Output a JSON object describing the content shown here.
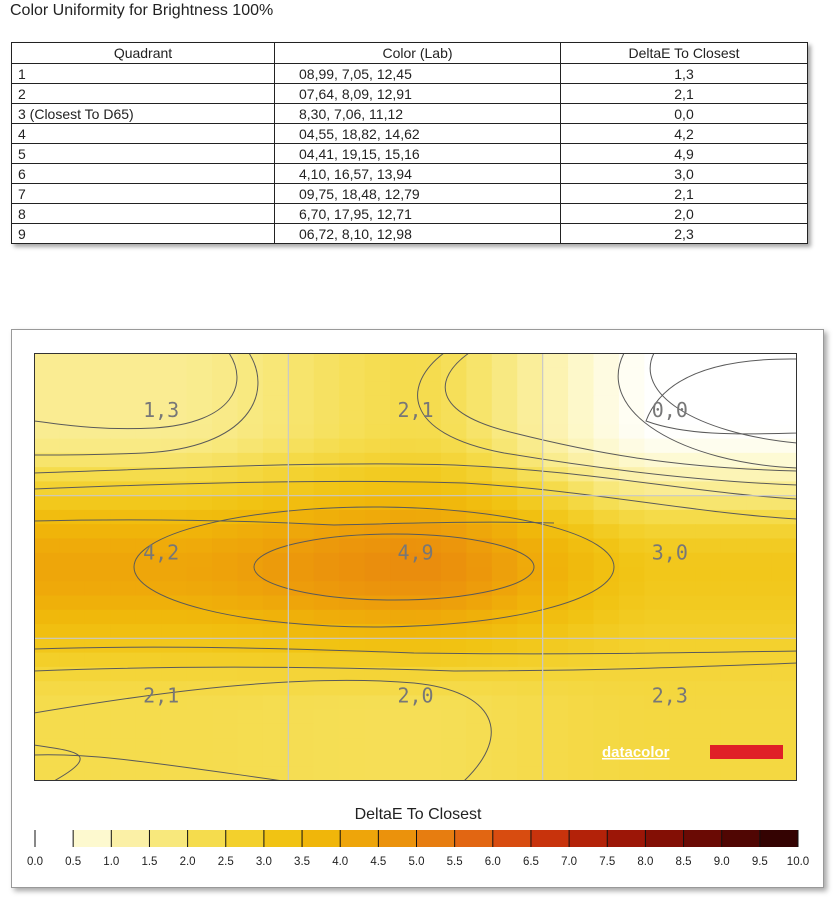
{
  "title": "Color Uniformity for Brightness 100%",
  "table": {
    "headers": [
      "Quadrant",
      "Color (Lab)",
      "DeltaE To Closest"
    ],
    "rows": [
      {
        "quadrant": "1",
        "lab": "08,99,  7,05,  12,45",
        "delta": "1,3"
      },
      {
        "quadrant": "2",
        "lab": "07,64,  8,09,  12,91",
        "delta": "2,1"
      },
      {
        "quadrant": "3 (Closest To D65)",
        "lab": "8,30,  7,06,  11,12",
        "delta": "0,0"
      },
      {
        "quadrant": "4",
        "lab": "04,55,  18,82,  14,62",
        "delta": "4,2"
      },
      {
        "quadrant": "5",
        "lab": "04,41,  19,15,  15,16",
        "delta": "4,9"
      },
      {
        "quadrant": "6",
        "lab": "4,10,  16,57,  13,94",
        "delta": "3,0"
      },
      {
        "quadrant": "7",
        "lab": "09,75,  18,48,  12,79",
        "delta": "2,1"
      },
      {
        "quadrant": "8",
        "lab": "6,70,  17,95,  12,71",
        "delta": "2,0"
      },
      {
        "quadrant": "9",
        "lab": "06,72,  8,10,  12,98",
        "delta": "2,3"
      }
    ]
  },
  "chart_data": {
    "type": "heatmap",
    "grid": [
      [
        "1,3",
        "2,1",
        "0,0"
      ],
      [
        "4,2",
        "4,9",
        "3,0"
      ],
      [
        "2,1",
        "2,0",
        "2,3"
      ]
    ],
    "values": [
      [
        1.3,
        2.1,
        0.0
      ],
      [
        4.2,
        4.9,
        3.0
      ],
      [
        2.1,
        2.0,
        2.3
      ]
    ],
    "colorbar_title": "DeltaE To Closest",
    "colorbar_ticks": [
      "0.0",
      "0.5",
      "1.0",
      "1.5",
      "2.0",
      "2.5",
      "3.0",
      "3.5",
      "4.0",
      "4.5",
      "5.0",
      "5.5",
      "6.0",
      "6.5",
      "7.0",
      "7.5",
      "8.0",
      "8.5",
      "9.0",
      "9.5",
      "10.0"
    ],
    "colorbar_range": [
      0,
      10
    ],
    "colorbar_colors": [
      "#ffffff",
      "#fdf9cf",
      "#fbf0a6",
      "#f8e87c",
      "#f5dc4d",
      "#f3d02c",
      "#f1c313",
      "#f0b60a",
      "#eea50a",
      "#eb920c",
      "#e77d10",
      "#e26612",
      "#d84c10",
      "#c8330c",
      "#b32209",
      "#9c1607",
      "#830f05",
      "#6a0a04",
      "#500603",
      "#340302"
    ],
    "logo": "datacolor",
    "accent_color": "#e01f27"
  }
}
